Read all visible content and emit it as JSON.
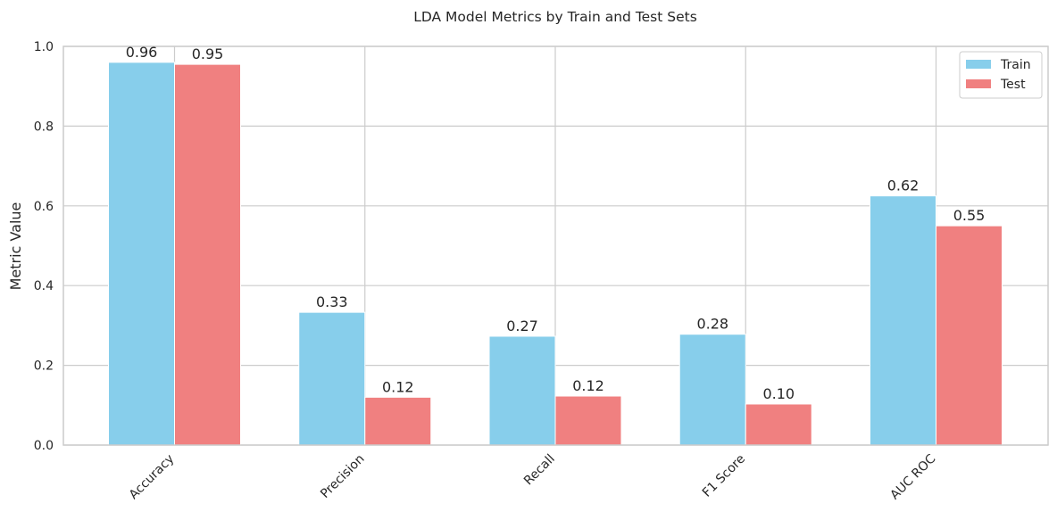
{
  "chart_data": {
    "type": "bar",
    "title": "LDA Model Metrics by Train and Test Sets",
    "xlabel": "",
    "ylabel": "Metric Value",
    "categories": [
      "Accuracy",
      "Precision",
      "Recall",
      "F1 Score",
      "AUC ROC"
    ],
    "series": [
      {
        "name": "Train",
        "color": "#87CEEB",
        "values": [
          0.96,
          0.333,
          0.273,
          0.278,
          0.625
        ],
        "labels": [
          "0.96",
          "0.33",
          "0.27",
          "0.28",
          "0.62"
        ]
      },
      {
        "name": "Test",
        "color": "#F08080",
        "values": [
          0.955,
          0.12,
          0.123,
          0.103,
          0.55
        ],
        "labels": [
          "0.95",
          "0.12",
          "0.12",
          "0.10",
          "0.55"
        ]
      }
    ],
    "ylim": [
      0,
      1.0
    ],
    "yticks": [
      "0.0",
      "0.2",
      "0.4",
      "0.6",
      "0.8",
      "1.0"
    ],
    "grid": true,
    "legend_position": "top-right"
  }
}
